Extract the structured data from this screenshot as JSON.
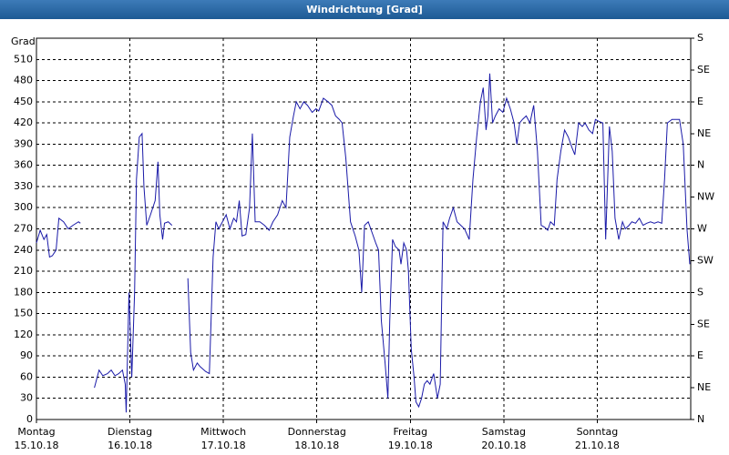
{
  "chart_data": {
    "type": "line",
    "title": "Windrichtung [Grad]",
    "y_label": "Grad",
    "xlim": [
      0,
      7
    ],
    "xticks": [
      {
        "value": 0,
        "label": "Montag"
      },
      {
        "value": 1,
        "label": "Dienstag"
      },
      {
        "value": 2,
        "label": "Mittwoch"
      },
      {
        "value": 3,
        "label": "Donnerstag"
      },
      {
        "value": 4,
        "label": "Freitag"
      },
      {
        "value": 5,
        "label": "Samstag"
      },
      {
        "value": 6,
        "label": "Sonntag"
      }
    ],
    "xtick_dates": [
      "15.10.18",
      "16.10.18",
      "17.10.18",
      "18.10.18",
      "19.10.18",
      "20.10.18",
      "21.10.18"
    ],
    "ylim": [
      0,
      540
    ],
    "yticks": [
      0,
      30,
      60,
      90,
      120,
      150,
      180,
      210,
      240,
      270,
      300,
      330,
      360,
      390,
      420,
      450,
      480,
      510
    ],
    "y2lim": [
      0,
      540
    ],
    "y2ticks": [
      {
        "value": 0,
        "label": "N"
      },
      {
        "value": 45,
        "label": "NE"
      },
      {
        "value": 90,
        "label": "E"
      },
      {
        "value": 135,
        "label": "SE"
      },
      {
        "value": 180,
        "label": "S"
      },
      {
        "value": 225,
        "label": "SW"
      },
      {
        "value": 270,
        "label": "W"
      },
      {
        "value": 315,
        "label": "NW"
      },
      {
        "value": 360,
        "label": "N"
      },
      {
        "value": 405,
        "label": "NE"
      },
      {
        "value": 450,
        "label": "E"
      },
      {
        "value": 495,
        "label": "SE"
      },
      {
        "value": 540,
        "label": "S"
      }
    ],
    "grid": true,
    "x": [
      0,
      0.04,
      0.08,
      0.11,
      0.14,
      0.17,
      0.21,
      0.24,
      0.29,
      0.34,
      0.39,
      0.45,
      0.47,
      0.55,
      0.62,
      0.67,
      0.71,
      0.76,
      0.8,
      0.84,
      0.88,
      0.92,
      0.95,
      0.96,
      0.99,
      1.02,
      1.05,
      1.07,
      1.1,
      1.13,
      1.15,
      1.18,
      1.22,
      1.27,
      1.3,
      1.32,
      1.35,
      1.37,
      1.41,
      1.45,
      1.55,
      1.62,
      1.65,
      1.68,
      1.72,
      1.75,
      1.81,
      1.85,
      1.89,
      1.92,
      1.95,
      1.99,
      2.03,
      2.07,
      2.11,
      2.14,
      2.17,
      2.2,
      2.24,
      2.28,
      2.31,
      2.34,
      2.39,
      2.44,
      2.49,
      2.53,
      2.58,
      2.63,
      2.67,
      2.71,
      2.75,
      2.78,
      2.82,
      2.86,
      2.9,
      2.95,
      2.99,
      3.02,
      3.07,
      3.12,
      3.16,
      3.2,
      3.24,
      3.27,
      3.31,
      3.36,
      3.41,
      3.45,
      3.48,
      3.51,
      3.55,
      3.59,
      3.63,
      3.66,
      3.69,
      3.73,
      3.76,
      3.78,
      3.81,
      3.84,
      3.88,
      3.9,
      3.93,
      3.96,
      3.98,
      4.01,
      4.04,
      4.06,
      4.09,
      4.12,
      4.15,
      4.18,
      4.21,
      4.25,
      4.29,
      4.32,
      4.35,
      4.39,
      4.42,
      4.46,
      4.5,
      4.54,
      4.58,
      4.63,
      4.67,
      4.71,
      4.75,
      4.78,
      4.81,
      4.83,
      4.85,
      4.88,
      4.91,
      4.95,
      4.99,
      5.03,
      5.07,
      5.11,
      5.14,
      5.17,
      5.2,
      5.24,
      5.28,
      5.32,
      5.36,
      5.4,
      5.44,
      5.47,
      5.5,
      5.54,
      5.57,
      5.61,
      5.65,
      5.69,
      5.73,
      5.76,
      5.8,
      5.84,
      5.87,
      5.91,
      5.95,
      5.98,
      6.02,
      6.06,
      6.09,
      6.13,
      6.16,
      6.19,
      6.23,
      6.27,
      6.3,
      6.34,
      6.37,
      6.41,
      6.45,
      6.49,
      6.53,
      6.57,
      6.61,
      6.65,
      6.69,
      6.72,
      6.75,
      6.8,
      6.84,
      6.88,
      6.92,
      6.96,
      6.99
    ],
    "series": [
      {
        "color": "#1a1aa8",
        "values": [
          250,
          268,
          255,
          262,
          230,
          232,
          240,
          285,
          280,
          270,
          275,
          280,
          278,
          null,
          45,
          70,
          62,
          65,
          70,
          62,
          65,
          70,
          50,
          10,
          180,
          60,
          180,
          340,
          400,
          405,
          330,
          275,
          290,
          310,
          365,
          290,
          255,
          278,
          280,
          275,
          null,
          200,
          95,
          70,
          80,
          75,
          68,
          65,
          230,
          280,
          270,
          280,
          290,
          270,
          285,
          280,
          310,
          260,
          262,
          300,
          405,
          280,
          280,
          275,
          268,
          280,
          290,
          310,
          300,
          400,
          430,
          450,
          440,
          450,
          445,
          435,
          440,
          437,
          455,
          450,
          445,
          430,
          425,
          420,
          370,
          280,
          260,
          240,
          180,
          275,
          280,
          265,
          250,
          240,
          140,
          80,
          30,
          140,
          255,
          245,
          240,
          220,
          250,
          240,
          210,
          100,
          60,
          25,
          18,
          30,
          50,
          55,
          50,
          65,
          30,
          50,
          280,
          270,
          285,
          300,
          280,
          275,
          270,
          255,
          340,
          400,
          450,
          470,
          410,
          430,
          490,
          420,
          430,
          440,
          435,
          455,
          440,
          420,
          390,
          420,
          425,
          430,
          420,
          445,
          380,
          275,
          272,
          268,
          280,
          275,
          340,
          380,
          410,
          400,
          385,
          375,
          420,
          415,
          420,
          410,
          405,
          425,
          422,
          420,
          255,
          415,
          380,
          285,
          255,
          280,
          270,
          275,
          280,
          278,
          285,
          275,
          278,
          280,
          278,
          280,
          278,
          340,
          420,
          425,
          425,
          425,
          390,
          270,
          220
        ]
      }
    ]
  }
}
